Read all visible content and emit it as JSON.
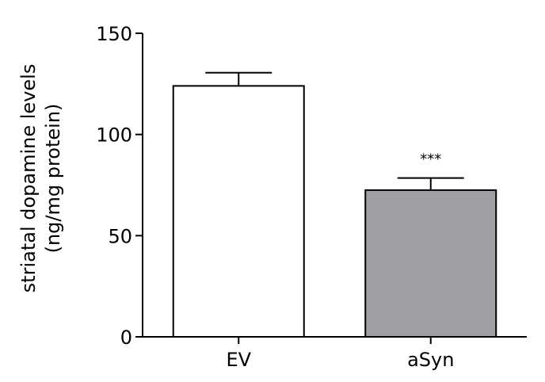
{
  "chart_data": {
    "type": "bar",
    "categories": [
      "EV",
      "aSyn"
    ],
    "values": [
      124,
      72.5
    ],
    "errors": [
      6.5,
      6
    ],
    "bar_colors": [
      "#ffffff",
      "#a0a0a4"
    ],
    "ylabel_line1": "striatal dopamine levels",
    "ylabel_line2": "(ng/mg protein)",
    "ylim": [
      0,
      150
    ],
    "yticks": [
      0,
      50,
      100,
      150
    ],
    "annotations": [
      "",
      "***"
    ],
    "grid": false
  }
}
